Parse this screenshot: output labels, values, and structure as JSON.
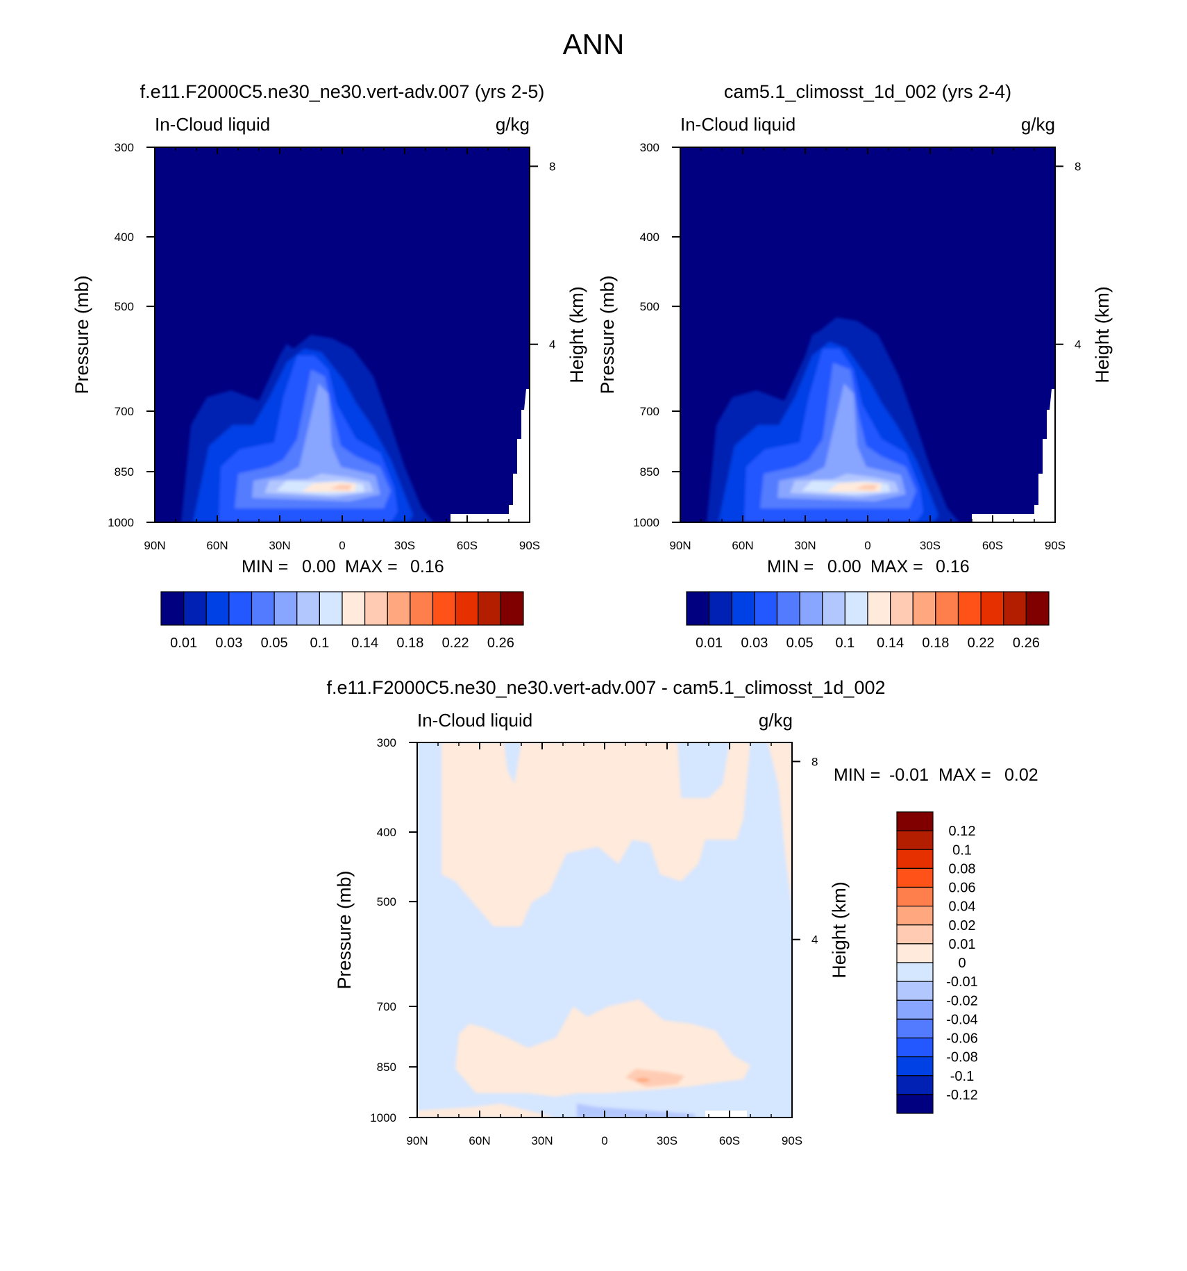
{
  "figure": {
    "title": "ANN"
  },
  "chart_data": [
    {
      "type": "heatmap",
      "title": "f.e11.F2000C5.ne30_ne30.vert-adv.007 (yrs 2-5)",
      "left_label": "In-Cloud liquid",
      "right_label": "g/kg",
      "ylabel": "Pressure (mb)",
      "ylabel_right": "Height (km)",
      "x_ticks": [
        "90N",
        "60N",
        "30N",
        "0",
        "30S",
        "60S",
        "90S"
      ],
      "x_values": [
        90,
        60,
        30,
        0,
        -30,
        -60,
        -90
      ],
      "y_ticks": [
        "300",
        "400",
        "500",
        "700",
        "850",
        "1000"
      ],
      "y_values": [
        300,
        400,
        500,
        700,
        850,
        1000
      ],
      "y_right_ticks": [
        "8",
        "4"
      ],
      "y_right_values": [
        8,
        4
      ],
      "ylim": [
        300,
        1000
      ],
      "xlim": [
        90,
        -90
      ],
      "stats": {
        "min_label": "MIN =",
        "min": "0.00",
        "max_label": "MAX =",
        "max": "0.16"
      },
      "colorbar": {
        "orientation": "horizontal",
        "colors": [
          "#000080",
          "#0021b3",
          "#0041e6",
          "#2357ff",
          "#537bff",
          "#88a5ff",
          "#b3c7ff",
          "#d5e6ff",
          "#ffeadb",
          "#ffccb3",
          "#ffa880",
          "#ff7f4c",
          "#ff5219",
          "#e63000",
          "#b31e00",
          "#800000"
        ],
        "labels": [
          "0.01",
          "0.03",
          "0.05",
          "0.1",
          "0.14",
          "0.18",
          "0.22",
          "0.26"
        ]
      }
    },
    {
      "type": "heatmap",
      "title": "cam5.1_climosst_1d_002 (yrs 2-4)",
      "left_label": "In-Cloud liquid",
      "right_label": "g/kg",
      "ylabel": "Pressure (mb)",
      "ylabel_right": "Height (km)",
      "x_ticks": [
        "90N",
        "60N",
        "30N",
        "0",
        "30S",
        "60S",
        "90S"
      ],
      "x_values": [
        90,
        60,
        30,
        0,
        -30,
        -60,
        -90
      ],
      "y_ticks": [
        "300",
        "400",
        "500",
        "700",
        "850",
        "1000"
      ],
      "y_values": [
        300,
        400,
        500,
        700,
        850,
        1000
      ],
      "y_right_ticks": [
        "8",
        "4"
      ],
      "y_right_values": [
        8,
        4
      ],
      "ylim": [
        300,
        1000
      ],
      "xlim": [
        90,
        -90
      ],
      "stats": {
        "min_label": "MIN =",
        "min": "0.00",
        "max_label": "MAX =",
        "max": "0.16"
      },
      "colorbar": {
        "orientation": "horizontal",
        "colors": [
          "#000080",
          "#0021b3",
          "#0041e6",
          "#2357ff",
          "#537bff",
          "#88a5ff",
          "#b3c7ff",
          "#d5e6ff",
          "#ffeadb",
          "#ffccb3",
          "#ffa880",
          "#ff7f4c",
          "#ff5219",
          "#e63000",
          "#b31e00",
          "#800000"
        ],
        "labels": [
          "0.01",
          "0.03",
          "0.05",
          "0.1",
          "0.14",
          "0.18",
          "0.22",
          "0.26"
        ]
      }
    },
    {
      "type": "heatmap",
      "title": "f.e11.F2000C5.ne30_ne30.vert-adv.007 - cam5.1_climosst_1d_002",
      "left_label": "In-Cloud liquid",
      "right_label": "g/kg",
      "ylabel": "Pressure (mb)",
      "ylabel_right": "Height (km)",
      "x_ticks": [
        "90N",
        "60N",
        "30N",
        "0",
        "30S",
        "60S",
        "90S"
      ],
      "x_values": [
        90,
        60,
        30,
        0,
        -30,
        -60,
        -90
      ],
      "y_ticks": [
        "300",
        "400",
        "500",
        "700",
        "850",
        "1000"
      ],
      "y_values": [
        300,
        400,
        500,
        700,
        850,
        1000
      ],
      "y_right_ticks": [
        "8",
        "4"
      ],
      "y_right_values": [
        8,
        4
      ],
      "ylim": [
        300,
        1000
      ],
      "xlim": [
        90,
        -90
      ],
      "stats": {
        "min_label": "MIN =",
        "min": "-0.01",
        "max_label": "MAX =",
        "max": "0.02"
      },
      "colorbar": {
        "orientation": "vertical",
        "colors_top_to_bottom": [
          "#800000",
          "#b31e00",
          "#e63000",
          "#ff5219",
          "#ff7f4c",
          "#ffa880",
          "#ffccb3",
          "#ffeadb",
          "#d5e6ff",
          "#b3c7ff",
          "#88a5ff",
          "#537bff",
          "#2357ff",
          "#0041e6",
          "#0021b3",
          "#000080"
        ],
        "labels": [
          "0.12",
          "0.1",
          "0.08",
          "0.06",
          "0.04",
          "0.02",
          "0.01",
          "0",
          "-0.01",
          "-0.02",
          "-0.04",
          "-0.06",
          "-0.08",
          "-0.1",
          "-0.12"
        ]
      }
    }
  ]
}
